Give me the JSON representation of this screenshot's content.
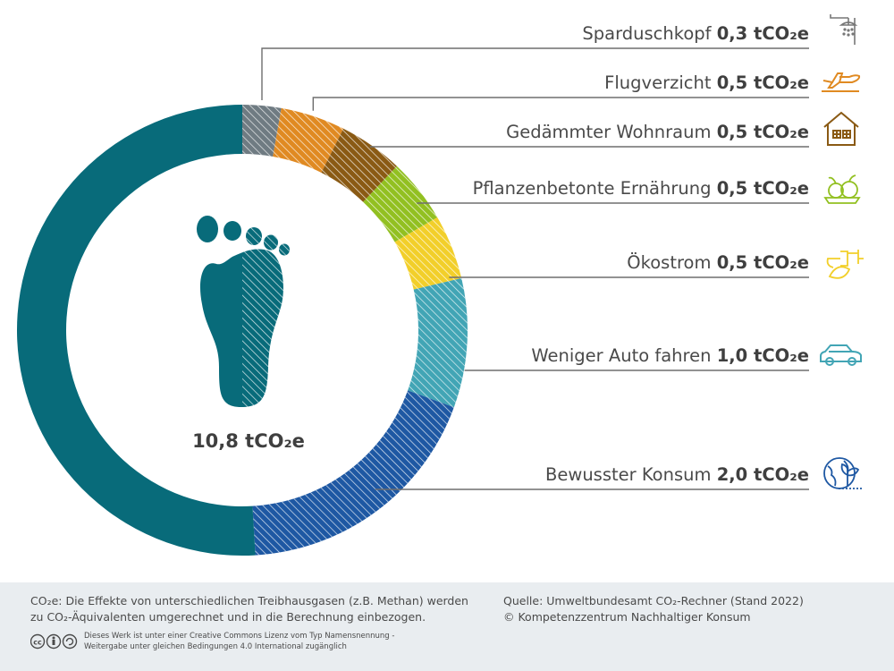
{
  "chart_data": {
    "type": "donut",
    "total_label": "10,8 tCO₂e",
    "segments": [
      {
        "label": "Sparduschkopf",
        "value_label": "0,3 tCO₂e",
        "value": 0.3,
        "color": "#6f7b82",
        "icon": "shower-icon"
      },
      {
        "label": "Flugverzicht",
        "value_label": "0,5 tCO₂e",
        "value": 0.5,
        "color": "#e08a22",
        "icon": "airplane-icon"
      },
      {
        "label": "Gedämmter Wohnraum",
        "value_label": "0,5 tCO₂e",
        "value": 0.5,
        "color": "#8a5a14",
        "icon": "house-icon"
      },
      {
        "label": "Pflanzenbetonte Ernährung",
        "value_label": "0,5 tCO₂e",
        "value": 0.5,
        "color": "#92c021",
        "icon": "vegetables-icon"
      },
      {
        "label": "Ökostrom",
        "value_label": "0,5 tCO₂e",
        "value": 0.5,
        "color": "#f2cf2a",
        "icon": "green-plug-icon"
      },
      {
        "label": "Weniger Auto fahren",
        "value_label": "1,0 tCO₂e",
        "value": 1.0,
        "color": "#42a5b5",
        "icon": "car-icon"
      },
      {
        "label": "Bewusster Konsum",
        "value_label": "2,0 tCO₂e",
        "value": 2.0,
        "color": "#1e58a3",
        "icon": "globe-plant-icon"
      }
    ],
    "remainder": {
      "value": 5.5,
      "color": "#086b7a"
    }
  },
  "footer": {
    "note_line1": "CO₂e: Die Effekte von unterschiedlichen Treibhausgasen (z.B. Methan) werden",
    "note_line2": "zu CO₂-Äquivalenten umgerechnet und in die Berechnung einbezogen.",
    "source_line1": "Quelle: Umweltbundesamt CO₂-Rechner (Stand 2022)",
    "source_line2": "© Kompetenzzentrum Nachhaltiger Konsum",
    "license_line1": "Dieses Werk ist unter einer Creative Commons Lizenz vom Typ Namensnennung -",
    "license_line2": "Weitergabe unter gleichen Bedingungen 4.0 International zugänglich"
  }
}
